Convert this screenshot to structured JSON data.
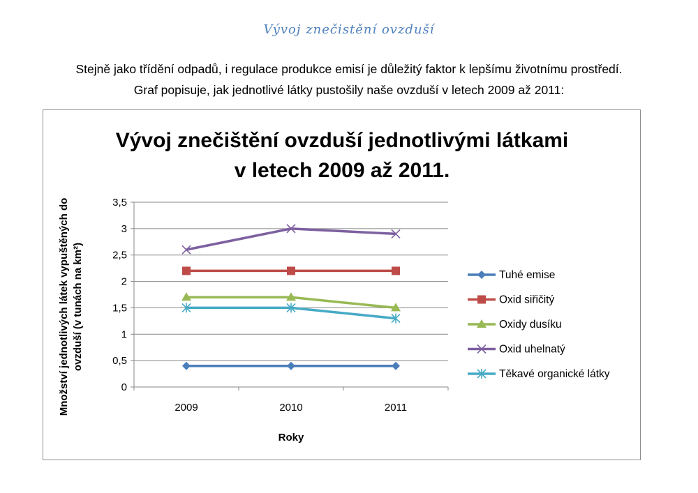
{
  "document": {
    "heading": "Vývoj znečistění ovzduší",
    "intro_line1": "Stejně jako třídění odpadů, i regulace produkce emisí je důležitý faktor k lepšímu životnímu prostředí.",
    "intro_line2": "Graf popisuje, jak jednotlivé látky pustošily naše ovzduší v letech 2009 až 2011:"
  },
  "chart_data": {
    "type": "line",
    "title_line1": "Vývoj znečištění ovzduší jednotlivými látkami",
    "title_line2": "v letech 2009 až 2011.",
    "xlabel": "Roky",
    "ylabel_line1": "Množství jednotlivých látek vypuštěných do",
    "ylabel_line2": "ovzduší  (v tunách na km²)",
    "categories": [
      "2009",
      "2010",
      "2011"
    ],
    "ylim": [
      0,
      3.5
    ],
    "yticks": [
      {
        "value": 0,
        "label": "0"
      },
      {
        "value": 0.5,
        "label": "0,5"
      },
      {
        "value": 1,
        "label": "1"
      },
      {
        "value": 1.5,
        "label": "1,5"
      },
      {
        "value": 2,
        "label": "2"
      },
      {
        "value": 2.5,
        "label": "2,5"
      },
      {
        "value": 3,
        "label": "3"
      },
      {
        "value": 3.5,
        "label": "3,5"
      }
    ],
    "grid": true,
    "legend_position": "right",
    "series": [
      {
        "name": "Tuhé emise",
        "values": [
          0.4,
          0.4,
          0.4
        ],
        "color": "#4a7ebb",
        "marker": "diamond"
      },
      {
        "name": "Oxid siřičitý",
        "values": [
          2.2,
          2.2,
          2.2
        ],
        "color": "#be4b48",
        "marker": "square"
      },
      {
        "name": "Oxidy dusíku",
        "values": [
          1.7,
          1.7,
          1.5
        ],
        "color": "#98b954",
        "marker": "triangle"
      },
      {
        "name": "Oxid uhelnatý",
        "values": [
          2.6,
          3.0,
          2.9
        ],
        "color": "#7d60a0",
        "marker": "x"
      },
      {
        "name": "Těkavé organické látky",
        "values": [
          1.5,
          1.5,
          1.3
        ],
        "color": "#46aac5",
        "marker": "star"
      }
    ]
  }
}
